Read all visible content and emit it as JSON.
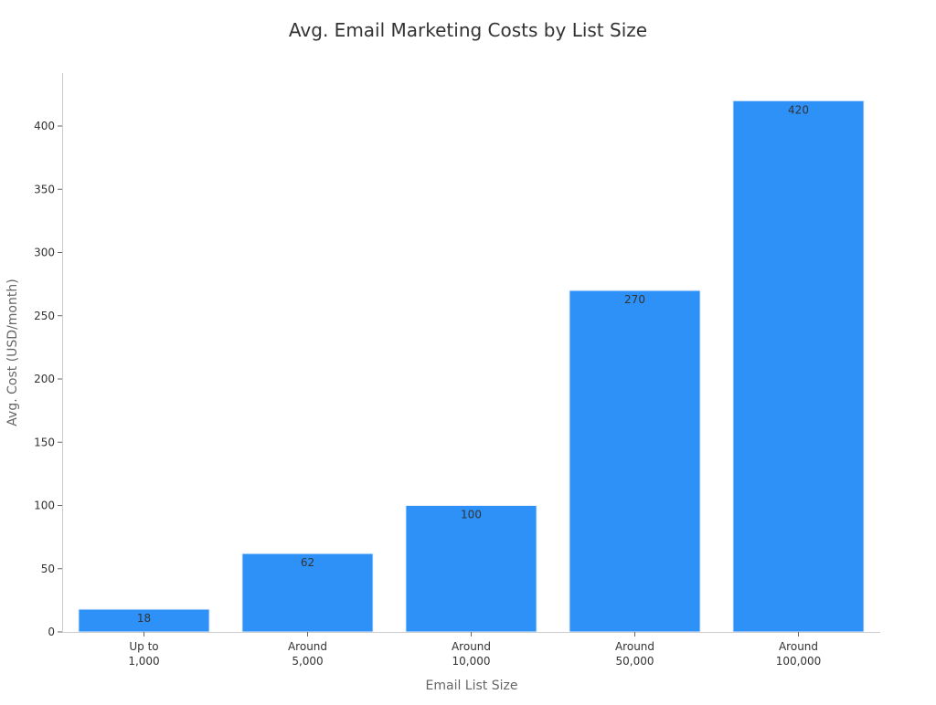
{
  "chart_data": {
    "type": "bar",
    "title": "Avg. Email Marketing Costs by List Size",
    "xlabel": "Email List Size",
    "ylabel": "Avg. Cost (USD/month)",
    "categories": [
      [
        "Up to",
        "1,000"
      ],
      [
        "Around",
        "5,000"
      ],
      [
        "Around",
        "10,000"
      ],
      [
        "Around",
        "50,000"
      ],
      [
        "Around",
        "100,000"
      ]
    ],
    "values": [
      18,
      62,
      100,
      270,
      420
    ],
    "data_labels": [
      "18",
      "62",
      "100",
      "270",
      "420"
    ],
    "ylim": [
      0,
      440
    ],
    "yticks": [
      0,
      50,
      100,
      150,
      200,
      250,
      300,
      350,
      400
    ],
    "grid": false,
    "legend": "none",
    "bar_color": "#2e91f8"
  }
}
